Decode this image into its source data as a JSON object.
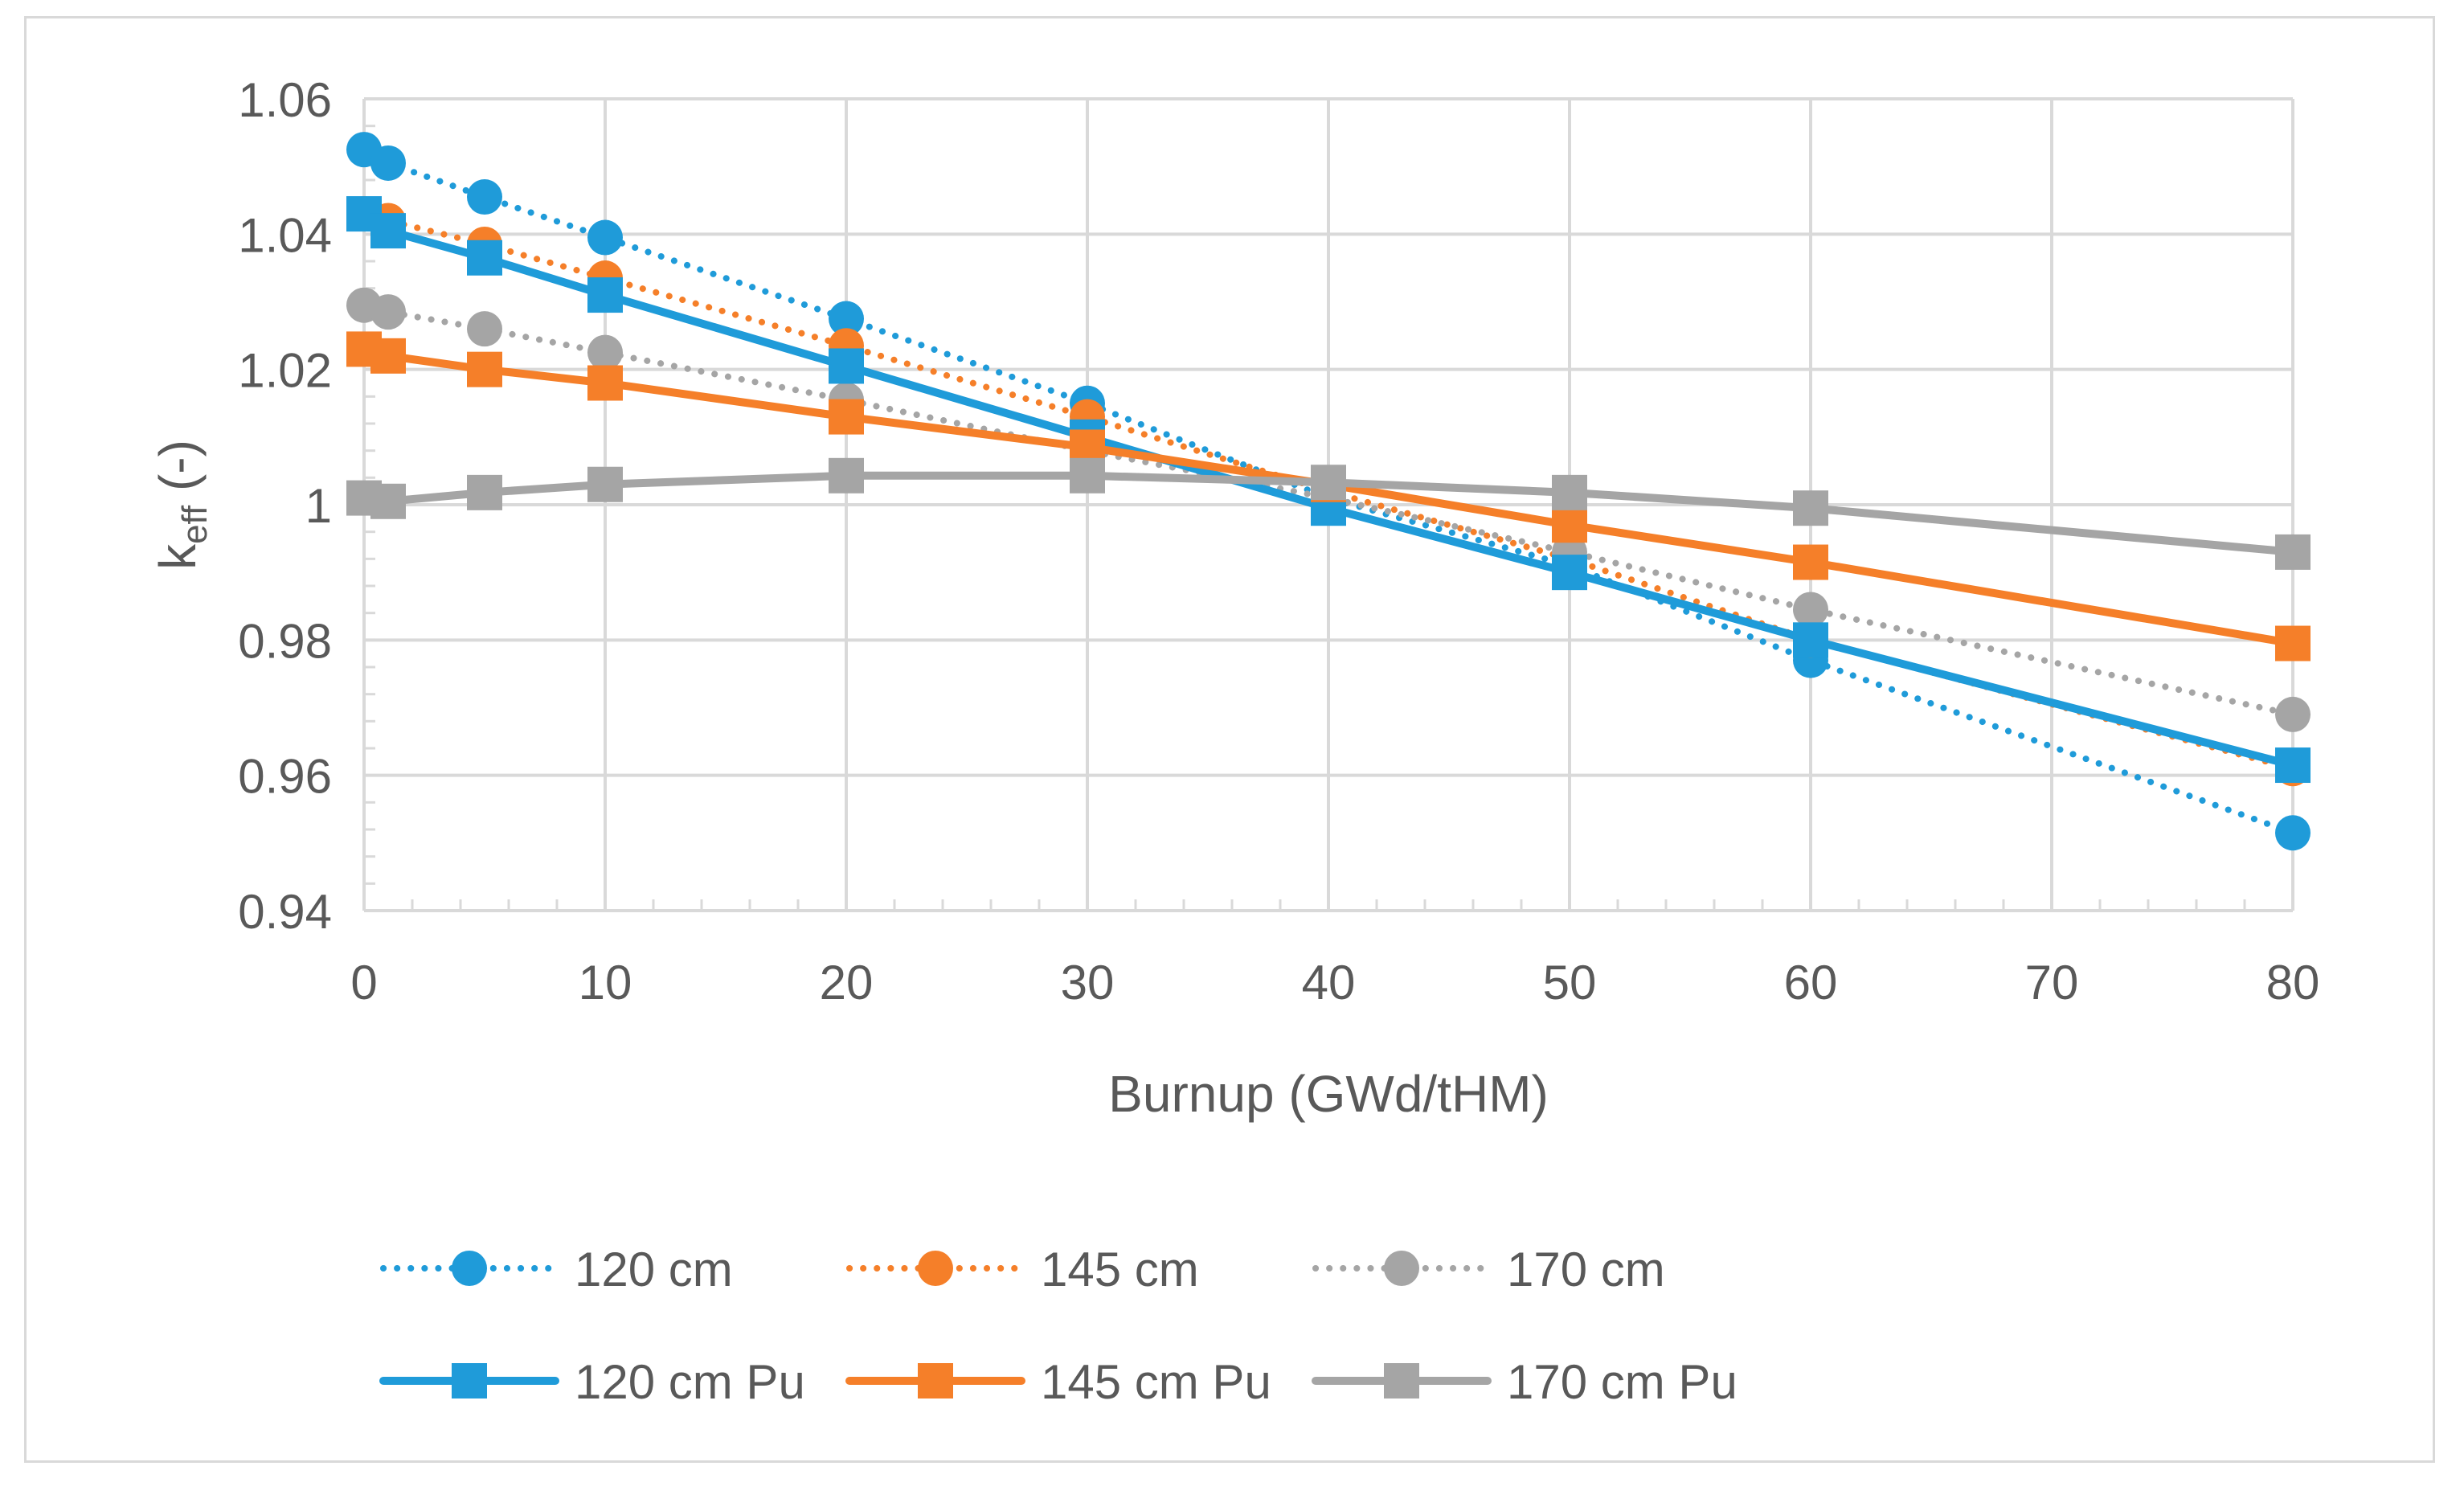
{
  "chart_data": {
    "type": "line",
    "title": "",
    "xlabel": "Burnup (GWd/tHM)",
    "ylabel_main": "k",
    "ylabel_sub": "eff",
    "ylabel_suffix": " (-)",
    "xlim": [
      0,
      80
    ],
    "ylim": [
      0.94,
      1.06
    ],
    "x_ticks": [
      0,
      10,
      20,
      30,
      40,
      50,
      60,
      70,
      80
    ],
    "x_tick_labels": [
      "0",
      "10",
      "20",
      "30",
      "40",
      "50",
      "60",
      "70",
      "80"
    ],
    "y_ticks": [
      0.94,
      0.96,
      0.98,
      1.0,
      1.02,
      1.04,
      1.06
    ],
    "y_tick_labels": [
      "0.94",
      "0.96",
      "0.98",
      "1",
      "1.02",
      "1.04",
      "1.06"
    ],
    "grid": true,
    "legend_position": "bottom",
    "x": [
      0,
      1,
      5,
      10,
      20,
      30,
      40,
      50,
      60,
      80
    ],
    "series": [
      {
        "name": "120 cm",
        "color": "#1f9bd9",
        "line": "dotted",
        "marker": "circle",
        "values": [
          1.0525,
          1.0505,
          1.0455,
          1.0395,
          1.0275,
          1.015,
          1.001,
          0.991,
          0.977,
          0.9515
        ]
      },
      {
        "name": "145 cm",
        "color": "#f57f29",
        "line": "dotted",
        "marker": "circle",
        "values": [
          1.043,
          1.042,
          1.0385,
          1.0335,
          1.0235,
          1.013,
          1.002,
          0.992,
          0.98,
          0.961
        ]
      },
      {
        "name": "170 cm",
        "color": "#a5a5a5",
        "line": "dotted",
        "marker": "circle",
        "values": [
          1.0295,
          1.0285,
          1.026,
          1.0225,
          1.0155,
          1.008,
          1.001,
          0.993,
          0.9845,
          0.969
        ]
      },
      {
        "name": "120 cm Pu",
        "color": "#1f9bd9",
        "line": "solid",
        "marker": "square",
        "values": [
          1.043,
          1.0405,
          1.0365,
          1.031,
          1.0205,
          1.01,
          0.9995,
          0.99,
          0.98,
          0.9615
        ]
      },
      {
        "name": "145 cm Pu",
        "color": "#f57f29",
        "line": "solid",
        "marker": "square",
        "values": [
          1.023,
          1.022,
          1.02,
          1.018,
          1.013,
          1.0085,
          1.003,
          0.997,
          0.9915,
          0.9795
        ]
      },
      {
        "name": "170 cm Pu",
        "color": "#a5a5a5",
        "line": "solid",
        "marker": "square",
        "values": [
          1.001,
          1.0005,
          1.0018,
          1.003,
          1.0043,
          1.0043,
          1.0033,
          1.0018,
          0.9995,
          0.993
        ]
      }
    ]
  }
}
